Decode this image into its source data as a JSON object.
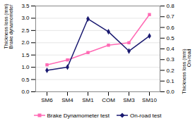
{
  "chart_data": {
    "type": "line",
    "categories": [
      "SM6",
      "SM4",
      "SM1",
      "COM",
      "SM3",
      "SM10"
    ],
    "series": [
      {
        "name": "Brake Dynamometer test",
        "color": "#FF69B4",
        "values": [
          1.1,
          1.3,
          1.6,
          1.9,
          2.0,
          3.15
        ],
        "marker": "square",
        "line_style": "solid"
      },
      {
        "name": "On-road test",
        "color": "#191970",
        "values": [
          0.2,
          0.23,
          0.68,
          0.56,
          0.38,
          0.52
        ],
        "marker": "diamond",
        "line_style": "solid",
        "axis": "y2"
      }
    ],
    "ylabel": "Thickness loss (mm)\nBrake dynamometer",
    "y2label": "Thickness loss (mm)\nOn-road",
    "ylim": [
      0,
      3.5
    ],
    "yticks": [
      {
        "value": 0,
        "label": "0.0"
      },
      0.5,
      {
        "value": 1,
        "label": "1.0"
      },
      1.5,
      {
        "value": 2,
        "label": "2.0"
      },
      2.5,
      {
        "value": 3,
        "label": "3.0"
      },
      3.5
    ],
    "y2lim": [
      0,
      0.8
    ],
    "y2ticks": [
      {
        "value": 0,
        "label": "0.0"
      },
      0.1,
      0.2,
      0.3,
      0.4,
      0.5,
      0.6,
      0.7,
      0.8
    ],
    "grid": true,
    "legend": "bottom"
  }
}
